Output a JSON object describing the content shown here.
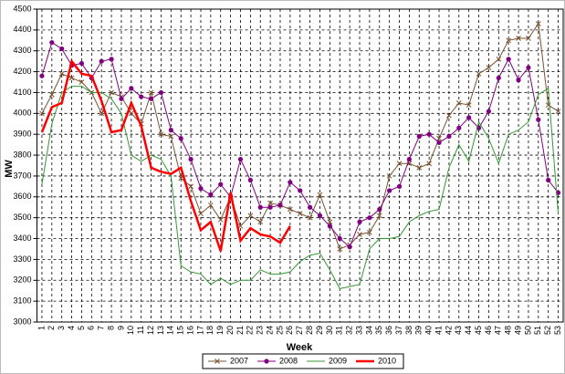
{
  "chart_data": {
    "type": "line",
    "x_label": "Week",
    "y_label": "MW",
    "categories": [
      "1",
      "2",
      "3",
      "4",
      "5",
      "6",
      "7",
      "8",
      "9",
      "10",
      "11",
      "12",
      "13",
      "14",
      "15",
      "16",
      "17",
      "18",
      "19",
      "20",
      "21",
      "22",
      "23",
      "24",
      "25",
      "26",
      "27",
      "28",
      "29",
      "30",
      "31",
      "32",
      "33",
      "34",
      "35",
      "36",
      "37",
      "38",
      "39",
      "40",
      "41",
      "42",
      "43",
      "44",
      "45",
      "46",
      "47",
      "48",
      "49",
      "50",
      "51",
      "52",
      "53"
    ],
    "series": [
      {
        "name": "2007",
        "color": "#7a5230",
        "marker": "x",
        "width": 1,
        "values": [
          4000,
          4090,
          4190,
          4170,
          4150,
          4100,
          4000,
          4100,
          4080,
          4000,
          3950,
          4100,
          3900,
          3890,
          3690,
          3650,
          3520,
          3560,
          3490,
          3600,
          3460,
          3510,
          3480,
          3570,
          3560,
          3540,
          3520,
          3500,
          3610,
          3480,
          3350,
          3370,
          3420,
          3430,
          3510,
          3700,
          3760,
          3760,
          3740,
          3760,
          3880,
          3990,
          4050,
          4040,
          4190,
          4220,
          4260,
          4350,
          4360,
          4360,
          4430,
          4040,
          4010
        ]
      },
      {
        "name": "2008",
        "color": "#800080",
        "marker": "circle",
        "width": 1,
        "values": [
          4180,
          4340,
          4310,
          4230,
          4240,
          4170,
          4250,
          4260,
          4070,
          4120,
          4080,
          4070,
          4100,
          3920,
          3880,
          3780,
          3640,
          3610,
          3660,
          3600,
          3780,
          3680,
          3550,
          3550,
          3560,
          3670,
          3630,
          3550,
          3510,
          3460,
          3400,
          3360,
          3480,
          3500,
          3540,
          3630,
          3650,
          3780,
          3890,
          3900,
          3860,
          3890,
          3930,
          3980,
          3930,
          4010,
          4170,
          4260,
          4160,
          4220,
          3970,
          3680,
          3620
        ]
      },
      {
        "name": "2009",
        "color": "#339933",
        "marker": "none",
        "width": 1,
        "values": [
          3660,
          3950,
          4100,
          4130,
          4130,
          4100,
          4100,
          4070,
          4000,
          3800,
          3770,
          3800,
          3780,
          3700,
          3270,
          3240,
          3230,
          3180,
          3210,
          3180,
          3200,
          3200,
          3250,
          3230,
          3230,
          3240,
          3290,
          3320,
          3330,
          3250,
          3160,
          3170,
          3180,
          3350,
          3400,
          3400,
          3410,
          3480,
          3510,
          3530,
          3540,
          3740,
          3850,
          3770,
          3960,
          3880,
          3760,
          3900,
          3920,
          3960,
          4090,
          4120,
          3520
        ]
      },
      {
        "name": "2010",
        "color": "#ff0000",
        "marker": "none",
        "width": 2.5,
        "values": [
          3910,
          4030,
          4050,
          4250,
          4190,
          4180,
          4060,
          3910,
          3920,
          4050,
          3940,
          3740,
          3720,
          3710,
          3740,
          3580,
          3440,
          3480,
          3340,
          3620,
          3390,
          3450,
          3420,
          3410,
          3380,
          3460,
          null,
          null,
          null,
          null,
          null,
          null,
          null,
          null,
          null,
          null,
          null,
          null,
          null,
          null,
          null,
          null,
          null,
          null,
          null,
          null,
          null,
          null,
          null,
          null,
          null,
          null,
          null
        ]
      }
    ],
    "ylim": [
      3000,
      4500
    ],
    "yticks": [
      3000,
      3100,
      3200,
      3300,
      3400,
      3500,
      3600,
      3700,
      3800,
      3900,
      4000,
      4100,
      4200,
      4300,
      4400,
      4500
    ],
    "grid": true,
    "legend": "bottom"
  }
}
